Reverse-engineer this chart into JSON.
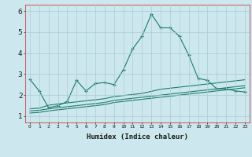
{
  "xlabel": "Humidex (Indice chaleur)",
  "background_color": "#cce8ee",
  "grid_color": "#aacccc",
  "line_color": "#1a7a6e",
  "spine_color": "#cc6666",
  "x_ticks": [
    0,
    1,
    2,
    3,
    4,
    5,
    6,
    7,
    8,
    9,
    10,
    11,
    12,
    13,
    14,
    15,
    16,
    17,
    18,
    19,
    20,
    21,
    22,
    23
  ],
  "ylim": [
    0.7,
    6.3
  ],
  "xlim": [
    -0.5,
    23.5
  ],
  "yticks": [
    1,
    2,
    3,
    4,
    5,
    6
  ],
  "series1_x": [
    0,
    1,
    2,
    3,
    4,
    5,
    6,
    7,
    8,
    9,
    10,
    11,
    12,
    13,
    14,
    15,
    16,
    17,
    18,
    19,
    20,
    21,
    22,
    23
  ],
  "series1_y": [
    2.75,
    2.2,
    1.4,
    1.5,
    1.7,
    2.7,
    2.2,
    2.55,
    2.6,
    2.5,
    3.2,
    4.2,
    4.8,
    5.85,
    5.2,
    5.2,
    4.8,
    3.9,
    2.8,
    2.7,
    2.3,
    2.3,
    2.2,
    2.15
  ],
  "series2_x": [
    0,
    1,
    2,
    3,
    4,
    5,
    6,
    7,
    8,
    9,
    10,
    11,
    12,
    13,
    14,
    15,
    16,
    17,
    18,
    19,
    20,
    21,
    22,
    23
  ],
  "series2_y": [
    1.35,
    1.38,
    1.52,
    1.58,
    1.63,
    1.68,
    1.73,
    1.78,
    1.83,
    1.93,
    1.98,
    2.03,
    2.08,
    2.18,
    2.28,
    2.33,
    2.38,
    2.43,
    2.48,
    2.53,
    2.58,
    2.63,
    2.68,
    2.73
  ],
  "series3_x": [
    0,
    1,
    2,
    3,
    4,
    5,
    6,
    7,
    8,
    9,
    10,
    11,
    12,
    13,
    14,
    15,
    16,
    17,
    18,
    19,
    20,
    21,
    22,
    23
  ],
  "series3_y": [
    1.25,
    1.28,
    1.35,
    1.4,
    1.45,
    1.5,
    1.55,
    1.6,
    1.65,
    1.75,
    1.8,
    1.85,
    1.9,
    1.95,
    2.0,
    2.05,
    2.1,
    2.15,
    2.2,
    2.25,
    2.3,
    2.35,
    2.4,
    2.45
  ],
  "series4_x": [
    0,
    1,
    2,
    3,
    4,
    5,
    6,
    7,
    8,
    9,
    10,
    11,
    12,
    13,
    14,
    15,
    16,
    17,
    18,
    19,
    20,
    21,
    22,
    23
  ],
  "series4_y": [
    1.15,
    1.18,
    1.25,
    1.3,
    1.35,
    1.4,
    1.45,
    1.5,
    1.55,
    1.65,
    1.7,
    1.75,
    1.8,
    1.85,
    1.9,
    1.95,
    2.0,
    2.05,
    2.1,
    2.15,
    2.2,
    2.25,
    2.3,
    2.35
  ]
}
